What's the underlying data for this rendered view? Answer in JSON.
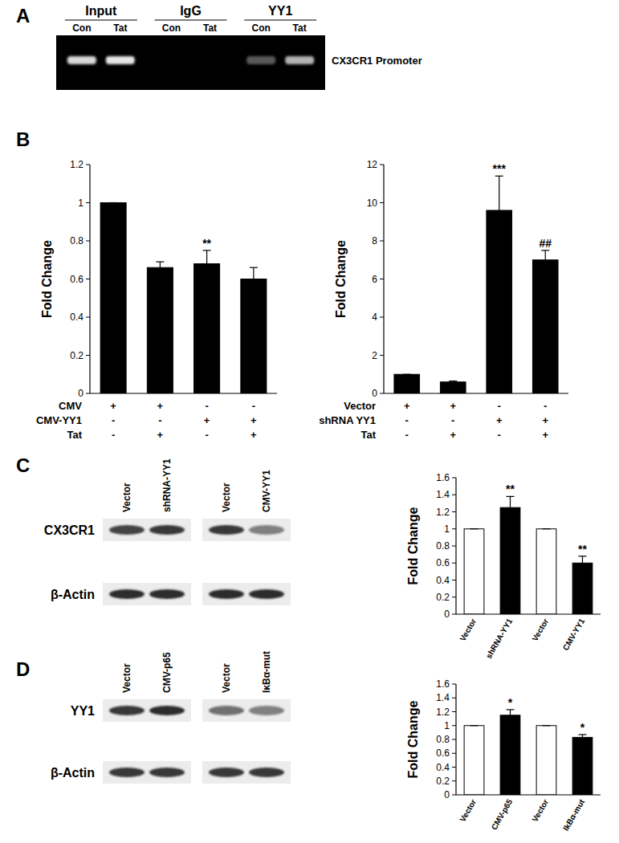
{
  "panel_labels": [
    "A",
    "B",
    "C",
    "D"
  ],
  "gel": {
    "groups": [
      {
        "label": "Input",
        "lanes": [
          "Con",
          "Tat"
        ],
        "intensity": [
          0.85,
          0.9
        ]
      },
      {
        "label": "IgG",
        "lanes": [
          "Con",
          "Tat"
        ],
        "intensity": [
          0,
          0
        ]
      },
      {
        "label": "YY1",
        "lanes": [
          "Con",
          "Tat"
        ],
        "intensity": [
          0.35,
          0.7
        ]
      }
    ],
    "target": "CX3CR1 Promoter"
  },
  "blots": [
    {
      "lanes": [
        "Vector",
        "shRNA-YY1",
        "Vector",
        "CMV-YY1"
      ],
      "rows": [
        {
          "label": "CX3CR1",
          "intensity": [
            0.8,
            0.85,
            0.85,
            0.5
          ]
        },
        {
          "label": "β-Actin",
          "intensity": [
            0.9,
            0.9,
            0.9,
            0.9
          ]
        }
      ]
    },
    {
      "lanes": [
        "Vector",
        "CMV-p65",
        "Vector",
        "IκBα-mut"
      ],
      "rows": [
        {
          "label": "YY1",
          "intensity": [
            0.85,
            0.9,
            0.6,
            0.5
          ]
        },
        {
          "label": "β-Actin",
          "intensity": [
            0.85,
            0.85,
            0.85,
            0.85
          ]
        }
      ]
    }
  ],
  "chart_data": [
    {
      "type": "bar",
      "y_label": "Fold Change",
      "categories": [
        null,
        null,
        null,
        null
      ],
      "values": [
        1,
        0.66,
        0.68,
        0.6
      ],
      "errors": [
        0,
        0.03,
        0.07,
        0.06
      ],
      "annotations": [
        null,
        null,
        "**",
        null
      ],
      "conditions": [
        {
          "label": "CMV",
          "signs": [
            "+",
            "+",
            "-",
            "-"
          ]
        },
        {
          "label": "CMV-YY1",
          "signs": [
            "-",
            "-",
            "+",
            "+"
          ]
        },
        {
          "label": "Tat",
          "signs": [
            "-",
            "+",
            "-",
            "+"
          ]
        }
      ],
      "color": "#000000",
      "ylim": [
        0,
        1.2
      ],
      "yticks": [
        0,
        0.2,
        0.4,
        0.6,
        0.8,
        1,
        1.2
      ]
    },
    {
      "type": "bar",
      "y_label": "Fold Change",
      "categories": [
        null,
        null,
        null,
        null
      ],
      "values": [
        1,
        0.6,
        9.6,
        7.0
      ],
      "errors": [
        0,
        0.05,
        1.8,
        0.5
      ],
      "annotations": [
        null,
        null,
        "***",
        "##"
      ],
      "conditions": [
        {
          "label": "Vector",
          "signs": [
            "+",
            "+",
            "-",
            "-"
          ]
        },
        {
          "label": "shRNA YY1",
          "signs": [
            "-",
            "-",
            "+",
            "+"
          ]
        },
        {
          "label": "Tat",
          "signs": [
            "-",
            "+",
            "-",
            "+"
          ]
        }
      ],
      "color": "#000000",
      "ylim": [
        0,
        12
      ],
      "yticks": [
        0,
        2,
        4,
        6,
        8,
        10,
        12
      ]
    },
    {
      "type": "bar",
      "y_label": "Fold Change",
      "categories": [
        "Vector",
        "shRNA-YY1",
        "Vector",
        "CMV-YY1"
      ],
      "values": [
        1,
        1.25,
        1,
        0.6
      ],
      "errors": [
        0,
        0.13,
        0,
        0.08
      ],
      "annotations": [
        null,
        "**",
        null,
        "**"
      ],
      "colors": [
        "#ffffff",
        "#000000",
        "#ffffff",
        "#000000"
      ],
      "ylim": [
        0,
        1.6
      ],
      "yticks": [
        0,
        0.2,
        0.4,
        0.6,
        0.8,
        1,
        1.2,
        1.4,
        1.6
      ]
    },
    {
      "type": "bar",
      "y_label": "Fold Change",
      "categories": [
        "Vector",
        "CMV-p65",
        "Vector",
        "IkBα-mut"
      ],
      "values": [
        1,
        1.15,
        1,
        0.83
      ],
      "errors": [
        0,
        0.08,
        0,
        0.04
      ],
      "annotations": [
        null,
        "*",
        null,
        "*"
      ],
      "colors": [
        "#ffffff",
        "#000000",
        "#ffffff",
        "#000000"
      ],
      "ylim": [
        0,
        1.6
      ],
      "yticks": [
        0,
        0.2,
        0.4,
        0.6,
        0.8,
        1,
        1.2,
        1.4,
        1.6
      ]
    }
  ]
}
